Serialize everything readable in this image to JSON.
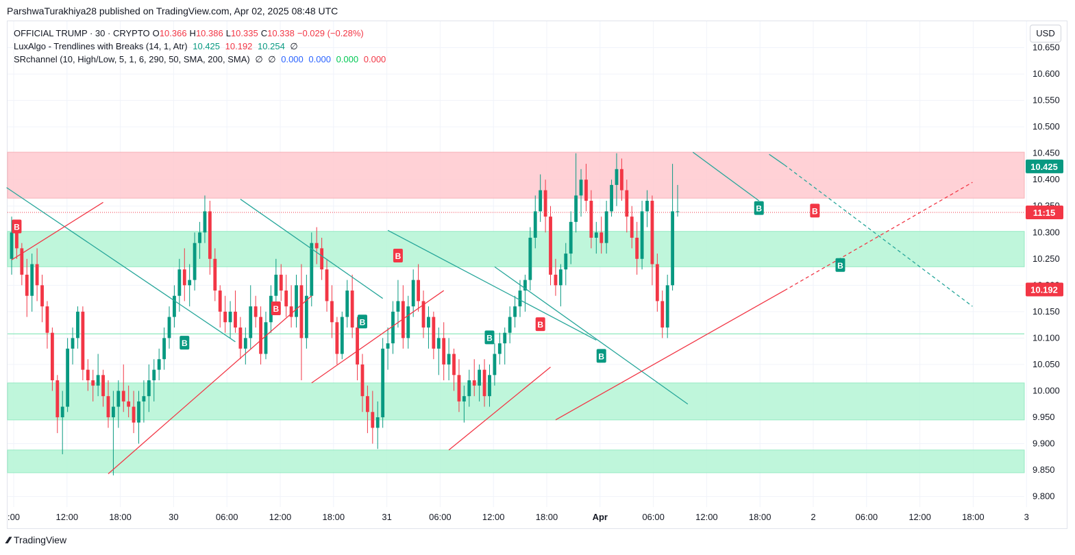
{
  "header": {
    "published_text": "ParshwaTurakhiya28 published on TradingView.com, Apr 02, 2025 08:48 UTC"
  },
  "legend": {
    "symbol": "OFFICIAL TRUMP · 30 · CRYPTO",
    "open_label": "O",
    "open": "10.366",
    "high_label": "H",
    "high": "10.386",
    "low_label": "L",
    "low": "10.335",
    "close_label": "C",
    "close": "10.338",
    "change": "−0.029 (−0.28%)",
    "indicator1_name": "LuxAlgo - Trendlines with Breaks (14, 1, Atr)",
    "indicator1_v1": "10.425",
    "indicator1_v2": "10.192",
    "indicator1_v3": "10.254",
    "indicator1_v4": "∅",
    "indicator2_name": "SRchannel (10, High/Low, 5, 1, 6, 290, 50, SMA, 200, SMA)",
    "indicator2_v1": "∅",
    "indicator2_v2": "∅",
    "indicator2_v3": "0.000",
    "indicator2_v4": "0.000",
    "indicator2_v5": "0.000",
    "indicator2_v6": "0.000"
  },
  "currency_button": "USD",
  "footer": {
    "brand": "TradingView",
    "icon": "tradingview-logo-icon"
  },
  "colors": {
    "up": "#089981",
    "down": "#f23645",
    "resistance_zone": "#ffcdd2",
    "support_zone": "#b9f6d8",
    "trend_down": "#26a69a",
    "trend_up": "#f23645"
  },
  "chart_data": {
    "type": "candlestick",
    "x_ticks": [
      ":00",
      "12:00",
      "18:00",
      "30",
      "06:00",
      "12:00",
      "18:00",
      "31",
      "06:00",
      "12:00",
      "18:00",
      "Apr",
      "06:00",
      "12:00",
      "18:00",
      "2",
      "06:00",
      "12:00",
      "18:00",
      "3"
    ],
    "y_ticks": [
      "10.650",
      "10.600",
      "10.550",
      "10.500",
      "10.450",
      "10.400",
      "10.350",
      "10.300",
      "10.250",
      "10.200",
      "10.150",
      "10.100",
      "10.050",
      "10.000",
      "9.950",
      "9.900",
      "9.850",
      "9.800"
    ],
    "ylim": [
      9.78,
      10.7
    ],
    "price_labels": [
      {
        "value": 10.425,
        "text": "10.425",
        "color": "#089981"
      },
      {
        "value": 10.338,
        "text": "11:15",
        "color": "#f23645"
      },
      {
        "value": 10.192,
        "text": "10.192",
        "color": "#f23645"
      }
    ],
    "zones": [
      {
        "from": 10.365,
        "to": 10.452,
        "kind": "resistance"
      },
      {
        "from": 10.235,
        "to": 10.302,
        "kind": "support"
      },
      {
        "from": 9.945,
        "to": 10.015,
        "kind": "support"
      },
      {
        "from": 9.845,
        "to": 9.888,
        "kind": "support"
      }
    ],
    "h_lines": [
      10.108
    ],
    "candles": [
      [
        10.25,
        10.33,
        10.22,
        10.3
      ],
      [
        10.3,
        10.32,
        10.25,
        10.27
      ],
      [
        10.27,
        10.28,
        10.2,
        10.22
      ],
      [
        10.22,
        10.25,
        10.14,
        10.18
      ],
      [
        10.18,
        10.26,
        10.15,
        10.24
      ],
      [
        10.24,
        10.27,
        10.17,
        10.2
      ],
      [
        10.2,
        10.22,
        10.13,
        10.16
      ],
      [
        10.16,
        10.17,
        10.08,
        10.11
      ],
      [
        10.11,
        10.12,
        10.0,
        10.02
      ],
      [
        10.02,
        10.03,
        9.92,
        9.95
      ],
      [
        9.95,
        10.0,
        9.88,
        9.97
      ],
      [
        9.97,
        10.1,
        9.96,
        10.08
      ],
      [
        10.08,
        10.12,
        10.05,
        10.1
      ],
      [
        10.1,
        10.16,
        10.08,
        10.15
      ],
      [
        10.15,
        10.16,
        10.02,
        10.04
      ],
      [
        10.04,
        10.06,
        10.0,
        10.02
      ],
      [
        10.02,
        10.04,
        9.98,
        10.01
      ],
      [
        10.01,
        10.07,
        9.99,
        10.03
      ],
      [
        10.03,
        10.04,
        9.97,
        9.99
      ],
      [
        9.99,
        10.02,
        9.93,
        9.95
      ],
      [
        9.95,
        10.0,
        9.84,
        9.97
      ],
      [
        9.97,
        10.02,
        9.93,
        10.0
      ],
      [
        10.0,
        10.05,
        9.96,
        9.98
      ],
      [
        9.98,
        10.01,
        9.95,
        9.97
      ],
      [
        9.97,
        10.0,
        9.92,
        9.94
      ],
      [
        9.94,
        10.0,
        9.9,
        9.98
      ],
      [
        9.98,
        10.02,
        9.94,
        9.99
      ],
      [
        9.99,
        10.05,
        9.96,
        10.02
      ],
      [
        10.02,
        10.06,
        9.98,
        10.04
      ],
      [
        10.04,
        10.08,
        10.02,
        10.06
      ],
      [
        10.06,
        10.12,
        10.04,
        10.1
      ],
      [
        10.1,
        10.16,
        10.08,
        10.14
      ],
      [
        10.14,
        10.2,
        10.12,
        10.18
      ],
      [
        10.18,
        10.25,
        10.15,
        10.23
      ],
      [
        10.23,
        10.27,
        10.17,
        10.2
      ],
      [
        10.2,
        10.24,
        10.16,
        10.21
      ],
      [
        10.21,
        10.3,
        10.19,
        10.28
      ],
      [
        10.28,
        10.32,
        10.25,
        10.3
      ],
      [
        10.3,
        10.37,
        10.28,
        10.34
      ],
      [
        10.34,
        10.36,
        10.22,
        10.25
      ],
      [
        10.25,
        10.27,
        10.17,
        10.19
      ],
      [
        10.19,
        10.2,
        10.12,
        10.15
      ],
      [
        10.15,
        10.18,
        10.11,
        10.13
      ],
      [
        10.13,
        10.17,
        10.1,
        10.15
      ],
      [
        10.15,
        10.19,
        10.11,
        10.12
      ],
      [
        10.12,
        10.14,
        10.06,
        10.08
      ],
      [
        10.08,
        10.12,
        10.05,
        10.1
      ],
      [
        10.1,
        10.2,
        10.08,
        10.16
      ],
      [
        10.16,
        10.18,
        10.12,
        10.14
      ],
      [
        10.14,
        10.16,
        10.05,
        10.07
      ],
      [
        10.07,
        10.15,
        10.06,
        10.13
      ],
      [
        10.13,
        10.2,
        10.11,
        10.18
      ],
      [
        10.18,
        10.25,
        10.16,
        10.22
      ],
      [
        10.22,
        10.24,
        10.17,
        10.19
      ],
      [
        10.19,
        10.22,
        10.14,
        10.16
      ],
      [
        10.16,
        10.2,
        10.12,
        10.14
      ],
      [
        10.14,
        10.22,
        10.12,
        10.2
      ],
      [
        10.2,
        10.24,
        10.02,
        10.1
      ],
      [
        10.1,
        10.22,
        10.08,
        10.18
      ],
      [
        10.18,
        10.3,
        10.16,
        10.28
      ],
      [
        10.28,
        10.31,
        10.24,
        10.27
      ],
      [
        10.27,
        10.29,
        10.21,
        10.23
      ],
      [
        10.23,
        10.25,
        10.15,
        10.17
      ],
      [
        10.17,
        10.2,
        10.1,
        10.13
      ],
      [
        10.13,
        10.14,
        10.05,
        10.07
      ],
      [
        10.07,
        10.15,
        10.06,
        10.14
      ],
      [
        10.14,
        10.21,
        10.12,
        10.19
      ],
      [
        10.19,
        10.22,
        10.1,
        10.12
      ],
      [
        10.12,
        10.14,
        10.02,
        10.05
      ],
      [
        10.05,
        10.07,
        9.96,
        9.99
      ],
      [
        9.99,
        10.01,
        9.92,
        9.96
      ],
      [
        9.96,
        10.0,
        9.9,
        9.93
      ],
      [
        9.93,
        9.98,
        9.89,
        9.95
      ],
      [
        9.95,
        10.1,
        9.93,
        10.08
      ],
      [
        10.08,
        10.12,
        10.04,
        10.09
      ],
      [
        10.09,
        10.17,
        10.07,
        10.15
      ],
      [
        10.15,
        10.21,
        10.12,
        10.17
      ],
      [
        10.17,
        10.2,
        10.08,
        10.1
      ],
      [
        10.1,
        10.18,
        10.08,
        10.16
      ],
      [
        10.16,
        10.23,
        10.14,
        10.21
      ],
      [
        10.21,
        10.24,
        10.15,
        10.17
      ],
      [
        10.17,
        10.19,
        10.1,
        10.12
      ],
      [
        10.12,
        10.16,
        10.08,
        10.14
      ],
      [
        10.14,
        10.15,
        10.06,
        10.08
      ],
      [
        10.08,
        10.12,
        10.03,
        10.1
      ],
      [
        10.1,
        10.13,
        10.02,
        10.05
      ],
      [
        10.05,
        10.1,
        10.02,
        10.07
      ],
      [
        10.07,
        10.08,
        10.0,
        10.03
      ],
      [
        10.03,
        10.06,
        9.96,
        9.98
      ],
      [
        9.98,
        10.01,
        9.94,
        9.99
      ],
      [
        9.99,
        10.04,
        9.97,
        10.02
      ],
      [
        10.02,
        10.06,
        9.99,
        10.01
      ],
      [
        10.01,
        10.05,
        9.98,
        10.04
      ],
      [
        10.04,
        10.06,
        9.97,
        9.99
      ],
      [
        9.99,
        10.05,
        9.97,
        10.03
      ],
      [
        10.03,
        10.09,
        10.01,
        10.07
      ],
      [
        10.07,
        10.11,
        10.05,
        10.09
      ],
      [
        10.09,
        10.12,
        10.05,
        10.11
      ],
      [
        10.11,
        10.16,
        10.09,
        10.14
      ],
      [
        10.14,
        10.18,
        10.12,
        10.16
      ],
      [
        10.16,
        10.21,
        10.14,
        10.19
      ],
      [
        10.19,
        10.22,
        10.15,
        10.21
      ],
      [
        10.21,
        10.31,
        10.19,
        10.29
      ],
      [
        10.29,
        10.37,
        10.27,
        10.34
      ],
      [
        10.34,
        10.41,
        10.32,
        10.38
      ],
      [
        10.38,
        10.4,
        10.3,
        10.33
      ],
      [
        10.33,
        10.35,
        10.2,
        10.22
      ],
      [
        10.22,
        10.25,
        10.18,
        10.2
      ],
      [
        10.2,
        10.24,
        10.16,
        10.23
      ],
      [
        10.23,
        10.28,
        10.2,
        10.26
      ],
      [
        10.26,
        10.34,
        10.24,
        10.32
      ],
      [
        10.32,
        10.45,
        10.3,
        10.37
      ],
      [
        10.37,
        10.42,
        10.33,
        10.4
      ],
      [
        10.4,
        10.43,
        10.34,
        10.36
      ],
      [
        10.36,
        10.38,
        10.27,
        10.29
      ],
      [
        10.29,
        10.32,
        10.26,
        10.3
      ],
      [
        10.3,
        10.33,
        10.26,
        10.28
      ],
      [
        10.28,
        10.36,
        10.26,
        10.34
      ],
      [
        10.34,
        10.4,
        10.33,
        10.39
      ],
      [
        10.39,
        10.45,
        10.35,
        10.42
      ],
      [
        10.42,
        10.44,
        10.36,
        10.38
      ],
      [
        10.38,
        10.4,
        10.3,
        10.33
      ],
      [
        10.33,
        10.35,
        10.27,
        10.29
      ],
      [
        10.29,
        10.32,
        10.22,
        10.25
      ],
      [
        10.25,
        10.36,
        10.23,
        10.34
      ],
      [
        10.34,
        10.38,
        10.31,
        10.36
      ],
      [
        10.36,
        10.37,
        10.2,
        10.24
      ],
      [
        10.24,
        10.26,
        10.15,
        10.17
      ],
      [
        10.17,
        10.19,
        10.1,
        10.12
      ],
      [
        10.12,
        10.22,
        10.1,
        10.2
      ],
      [
        10.2,
        10.43,
        10.19,
        10.34
      ],
      [
        10.34,
        10.39,
        10.33,
        10.34
      ]
    ],
    "trendlines": [
      {
        "from": [
          -1,
          10.385
        ],
        "to": [
          44,
          10.093
        ],
        "color": "#26a69a",
        "dash": false
      },
      {
        "from": [
          0,
          10.248
        ],
        "to": [
          18,
          10.357
        ],
        "color": "#f23645",
        "dash": false
      },
      {
        "from": [
          19,
          9.843
        ],
        "to": [
          59,
          10.18
        ],
        "color": "#f23645",
        "dash": false
      },
      {
        "from": [
          45,
          10.363
        ],
        "to": [
          73,
          10.175
        ],
        "color": "#26a69a",
        "dash": false
      },
      {
        "from": [
          59,
          10.015
        ],
        "to": [
          85,
          10.19
        ],
        "color": "#f23645",
        "dash": false
      },
      {
        "from": [
          74,
          10.304
        ],
        "to": [
          115,
          10.096
        ],
        "color": "#26a69a",
        "dash": false
      },
      {
        "from": [
          86,
          9.888
        ],
        "to": [
          106,
          10.045
        ],
        "color": "#f23645",
        "dash": false
      },
      {
        "from": [
          95,
          10.235
        ],
        "to": [
          133,
          9.975
        ],
        "color": "#26a69a",
        "dash": false
      },
      {
        "from": [
          107,
          9.945
        ],
        "to": [
          152,
          10.19
        ],
        "color": "#f23645",
        "dash": false
      },
      {
        "from": [
          152,
          10.19
        ],
        "to": [
          189,
          10.395
        ],
        "color": "#f23645",
        "dash": true
      },
      {
        "from": [
          134,
          10.452
        ],
        "to": [
          147,
          10.36
        ],
        "color": "#26a69a",
        "dash": false
      },
      {
        "from": [
          149,
          10.448
        ],
        "to": [
          152,
          10.428
        ],
        "color": "#26a69a",
        "dash": false
      },
      {
        "from": [
          152,
          10.428
        ],
        "to": [
          189,
          10.16
        ],
        "color": "#26a69a",
        "dash": true
      }
    ],
    "signals": [
      {
        "index": 1,
        "price": 10.31,
        "text": "B",
        "kind": "sell"
      },
      {
        "index": 34,
        "price": 10.09,
        "text": "B",
        "kind": "buy"
      },
      {
        "index": 52,
        "price": 10.155,
        "text": "B",
        "kind": "sell"
      },
      {
        "index": 69,
        "price": 10.13,
        "text": "B",
        "kind": "buy"
      },
      {
        "index": 76,
        "price": 10.255,
        "text": "B",
        "kind": "sell"
      },
      {
        "index": 94,
        "price": 10.1,
        "text": "B",
        "kind": "buy"
      },
      {
        "index": 104,
        "price": 10.125,
        "text": "B",
        "kind": "sell"
      },
      {
        "index": 116,
        "price": 10.065,
        "text": "B",
        "kind": "buy"
      },
      {
        "index": 147,
        "price": 10.345,
        "text": "B",
        "kind": "buy"
      },
      {
        "index": 158,
        "price": 10.34,
        "text": "B",
        "kind": "sell"
      },
      {
        "index": 163,
        "price": 10.237,
        "text": "B",
        "kind": "buy"
      }
    ]
  }
}
